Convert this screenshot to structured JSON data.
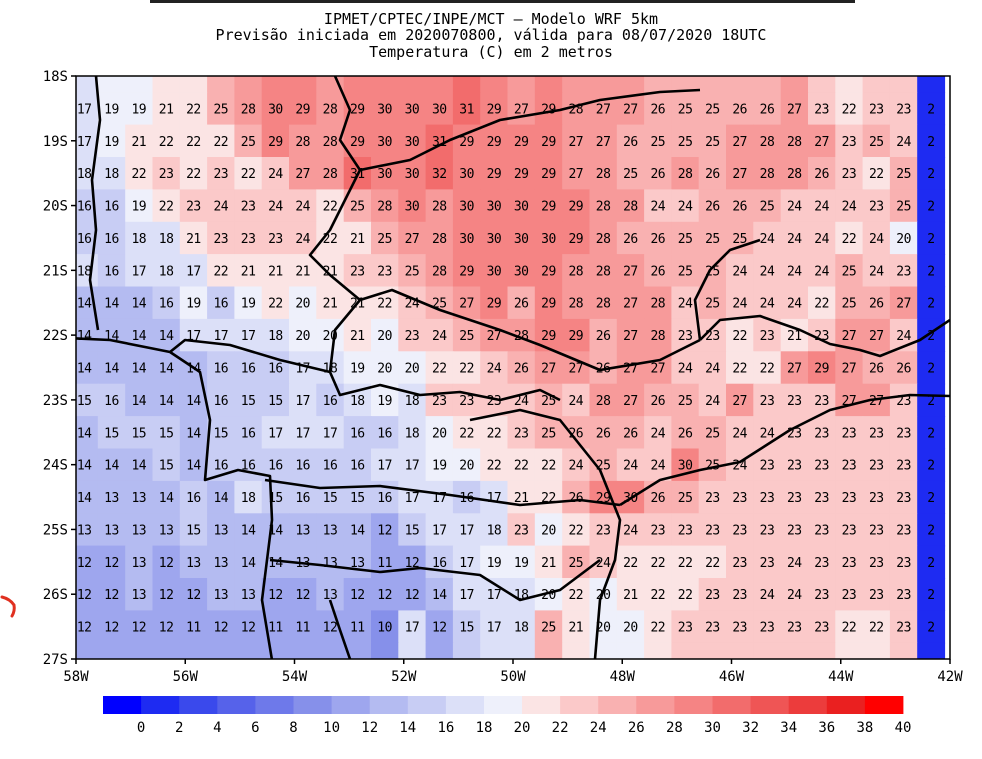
{
  "header": {
    "line1": "IPMET/CPTEC/INPE/MCT – Modelo WRF 5km",
    "line2": "Previsão iniciada em 2020070800, válida para 08/07/2020 18UTC",
    "line3": "Temperatura (C) em 2 metros"
  },
  "chart_data": {
    "type": "heatmap",
    "title": "Temperatura (C) em 2 metros",
    "xlabel": "",
    "ylabel": "",
    "x_ticks": [
      "58W",
      "56W",
      "54W",
      "52W",
      "50W",
      "48W",
      "46W",
      "44W",
      "42W"
    ],
    "y_ticks": [
      "18S",
      "19S",
      "20S",
      "21S",
      "22S",
      "23S",
      "24S",
      "25S",
      "26S",
      "27S"
    ],
    "xlim": [
      -58,
      -42
    ],
    "ylim": [
      -27,
      -18
    ],
    "grid": false,
    "colorbar": {
      "position": "bottom",
      "labels": [
        "0",
        "2",
        "4",
        "6",
        "8",
        "10",
        "12",
        "14",
        "16",
        "18",
        "20",
        "22",
        "24",
        "26",
        "28",
        "30",
        "32",
        "34",
        "36",
        "38",
        "40"
      ],
      "colors": [
        "#0000ff",
        "#1e2bf2",
        "#3a49ec",
        "#5662ea",
        "#6e79ea",
        "#8690ea",
        "#9ea6ee",
        "#b4bbf1",
        "#c8cdf4",
        "#dce0f8",
        "#eef0fb",
        "#fbe4e4",
        "#fbc9c9",
        "#f9b1b1",
        "#f79a9a",
        "#f58484",
        "#f26c6c",
        "#ef5555",
        "#ec3c3c",
        "#ea2020",
        "#ff0000"
      ]
    },
    "rows": [
      {
        "lat": -18.5,
        "values": [
          17,
          19,
          19,
          21,
          22,
          25,
          28,
          30,
          29,
          28,
          29,
          30,
          30,
          30,
          31,
          29,
          27,
          29,
          28,
          27,
          27,
          26,
          25,
          25,
          26,
          26,
          27,
          23,
          22,
          23,
          23,
          2
        ]
      },
      {
        "lat": -19.0,
        "values": [
          17,
          19,
          21,
          22,
          22,
          22,
          25,
          29,
          28,
          28,
          29,
          30,
          30,
          31,
          29,
          29,
          29,
          29,
          27,
          27,
          26,
          25,
          25,
          25,
          27,
          28,
          28,
          27,
          23,
          25,
          24,
          2
        ]
      },
      {
        "lat": -19.5,
        "values": [
          18,
          18,
          22,
          23,
          22,
          23,
          22,
          24,
          27,
          28,
          31,
          30,
          30,
          32,
          30,
          29,
          29,
          29,
          27,
          28,
          25,
          26,
          28,
          26,
          27,
          28,
          28,
          26,
          23,
          22,
          25,
          2
        ]
      },
      {
        "lat": -20.0,
        "values": [
          16,
          16,
          19,
          22,
          23,
          24,
          23,
          24,
          24,
          22,
          25,
          28,
          30,
          28,
          30,
          30,
          30,
          29,
          29,
          28,
          28,
          24,
          24,
          26,
          26,
          25,
          24,
          24,
          24,
          23,
          25,
          2
        ]
      },
      {
        "lat": -20.5,
        "values": [
          16,
          16,
          18,
          18,
          21,
          23,
          23,
          23,
          24,
          22,
          21,
          25,
          27,
          28,
          30,
          30,
          30,
          30,
          29,
          28,
          26,
          26,
          25,
          25,
          25,
          24,
          24,
          24,
          22,
          24,
          20,
          2
        ]
      },
      {
        "lat": -21.0,
        "values": [
          18,
          16,
          17,
          18,
          17,
          22,
          21,
          21,
          21,
          21,
          23,
          23,
          25,
          28,
          29,
          30,
          30,
          29,
          28,
          28,
          27,
          26,
          25,
          25,
          24,
          24,
          24,
          24,
          25,
          24,
          23,
          2
        ]
      },
      {
        "lat": -21.5,
        "values": [
          14,
          14,
          14,
          16,
          19,
          16,
          19,
          22,
          20,
          21,
          21,
          22,
          24,
          25,
          27,
          29,
          26,
          29,
          28,
          28,
          27,
          28,
          24,
          25,
          24,
          24,
          24,
          22,
          25,
          26,
          27,
          2
        ]
      },
      {
        "lat": -22.0,
        "values": [
          14,
          14,
          14,
          14,
          17,
          17,
          17,
          18,
          20,
          20,
          21,
          20,
          23,
          24,
          25,
          27,
          28,
          29,
          29,
          26,
          27,
          28,
          23,
          23,
          22,
          23,
          21,
          23,
          27,
          27,
          24,
          2
        ]
      },
      {
        "lat": -22.5,
        "values": [
          14,
          14,
          14,
          14,
          14,
          16,
          16,
          16,
          17,
          18,
          19,
          20,
          20,
          22,
          22,
          24,
          26,
          27,
          27,
          26,
          27,
          27,
          24,
          24,
          22,
          22,
          27,
          29,
          27,
          26,
          26,
          2
        ]
      },
      {
        "lat": -23.0,
        "values": [
          15,
          16,
          14,
          14,
          14,
          16,
          15,
          15,
          17,
          16,
          18,
          19,
          18,
          23,
          23,
          23,
          24,
          25,
          24,
          28,
          27,
          26,
          25,
          24,
          27,
          23,
          23,
          23,
          27,
          27,
          23,
          2
        ]
      },
      {
        "lat": -23.5,
        "values": [
          14,
          15,
          15,
          15,
          14,
          15,
          16,
          17,
          17,
          17,
          16,
          16,
          18,
          20,
          22,
          22,
          23,
          25,
          26,
          26,
          26,
          24,
          26,
          25,
          24,
          24,
          23,
          23,
          23,
          23,
          23,
          2
        ]
      },
      {
        "lat": -24.0,
        "values": [
          14,
          14,
          14,
          15,
          14,
          16,
          16,
          16,
          16,
          16,
          16,
          17,
          17,
          19,
          20,
          22,
          22,
          22,
          24,
          25,
          24,
          24,
          30,
          25,
          24,
          23,
          23,
          23,
          23,
          23,
          23,
          2
        ]
      },
      {
        "lat": -24.5,
        "values": [
          14,
          13,
          13,
          14,
          16,
          14,
          18,
          15,
          16,
          15,
          15,
          16,
          17,
          17,
          16,
          17,
          21,
          22,
          26,
          29,
          30,
          26,
          25,
          23,
          23,
          23,
          23,
          23,
          23,
          23,
          23,
          2
        ]
      },
      {
        "lat": -25.0,
        "values": [
          13,
          13,
          13,
          13,
          15,
          13,
          14,
          14,
          13,
          13,
          14,
          12,
          15,
          17,
          17,
          18,
          23,
          20,
          22,
          23,
          24,
          23,
          23,
          23,
          23,
          23,
          23,
          23,
          23,
          23,
          23,
          2
        ]
      },
      {
        "lat": -25.5,
        "values": [
          12,
          12,
          13,
          12,
          13,
          13,
          14,
          14,
          13,
          13,
          13,
          11,
          12,
          16,
          17,
          19,
          19,
          21,
          25,
          24,
          22,
          22,
          22,
          22,
          23,
          23,
          24,
          23,
          23,
          23,
          23,
          2
        ]
      },
      {
        "lat": -26.0,
        "values": [
          12,
          12,
          13,
          12,
          12,
          13,
          13,
          12,
          12,
          13,
          12,
          12,
          12,
          14,
          17,
          17,
          18,
          20,
          22,
          20,
          21,
          22,
          22,
          23,
          23,
          24,
          24,
          23,
          23,
          23,
          23,
          2
        ]
      },
      {
        "lat": -26.5,
        "values": [
          12,
          12,
          12,
          12,
          11,
          12,
          12,
          11,
          11,
          12,
          11,
          10,
          17,
          12,
          15,
          17,
          18,
          25,
          21,
          20,
          20,
          22,
          23,
          23,
          23,
          23,
          23,
          23,
          22,
          22,
          23,
          2
        ]
      }
    ]
  }
}
